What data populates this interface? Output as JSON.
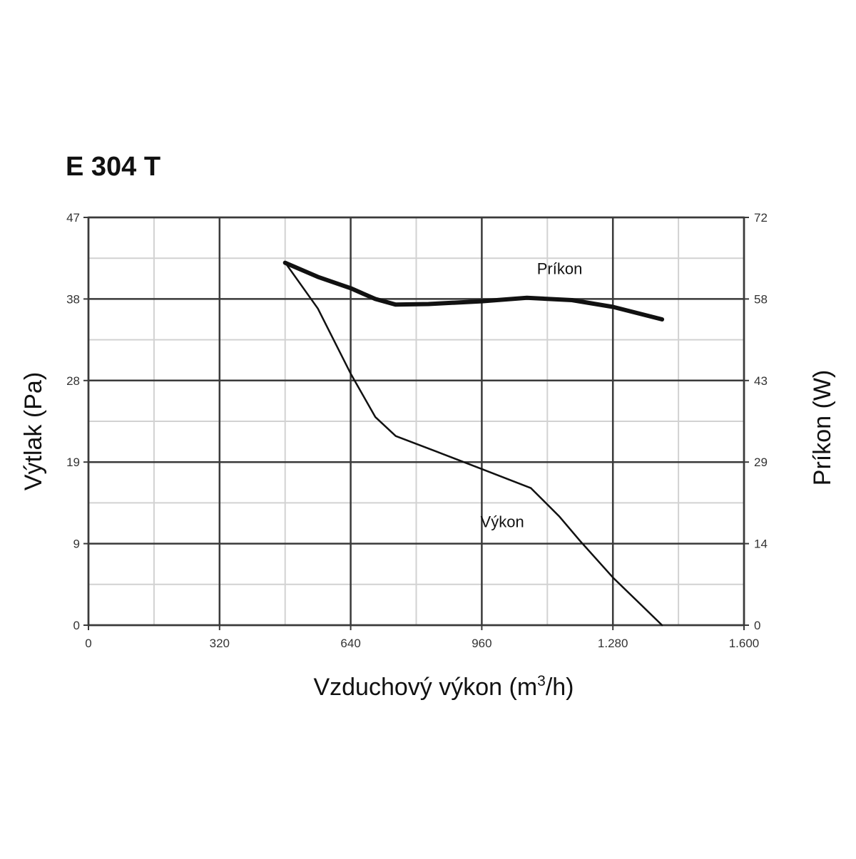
{
  "chart_data": {
    "type": "line",
    "title": "E 304 T",
    "xlabel": {
      "main": "Vzduchový výkon (m",
      "sup": "3",
      "tail": "/h)"
    },
    "ylabel": "Výtlak (Pa)",
    "y2label": "Príkon (W)",
    "xlim": [
      0,
      1600
    ],
    "ylim": [
      0,
      47
    ],
    "y2lim": [
      0,
      72
    ],
    "x_ticks": [
      {
        "value": 0,
        "label": "0"
      },
      {
        "value": 320,
        "label": "320"
      },
      {
        "value": 640,
        "label": "640"
      },
      {
        "value": 960,
        "label": "960"
      },
      {
        "value": 1280,
        "label": "1.280"
      },
      {
        "value": 1600,
        "label": "1.600"
      }
    ],
    "x_minor_ticks": [
      160,
      480,
      800,
      1120,
      1440
    ],
    "y_ticks": [
      {
        "value": 0,
        "label": "0"
      },
      {
        "value": 9.4,
        "label": "9"
      },
      {
        "value": 18.8,
        "label": "19"
      },
      {
        "value": 28.2,
        "label": "28"
      },
      {
        "value": 37.6,
        "label": "38"
      },
      {
        "value": 47,
        "label": "47"
      }
    ],
    "y_minor_ticks": [
      4.7,
      14.1,
      23.5,
      32.9,
      42.3
    ],
    "y2_ticks": [
      {
        "value": 0,
        "label": "0"
      },
      {
        "value": 14.4,
        "label": "14"
      },
      {
        "value": 28.8,
        "label": "29"
      },
      {
        "value": 43.2,
        "label": "43"
      },
      {
        "value": 57.6,
        "label": "58"
      },
      {
        "value": 72,
        "label": "72"
      }
    ],
    "grid": true,
    "series": [
      {
        "name": "Príkon",
        "axis": "y2",
        "color": "#111111",
        "weight": "bold",
        "x": [
          480,
          560,
          640,
          700,
          750,
          830,
          960,
          1070,
          1180,
          1280,
          1400
        ],
        "y": [
          64.0,
          61.5,
          59.5,
          57.6,
          56.6,
          56.7,
          57.2,
          57.8,
          57.4,
          56.2,
          54.0
        ]
      },
      {
        "name": "Výkon",
        "axis": "y",
        "color": "#111111",
        "weight": "thin",
        "x": [
          480,
          560,
          640,
          700,
          750,
          850,
          960,
          1080,
          1150,
          1200,
          1280,
          1400
        ],
        "y": [
          41.8,
          36.5,
          29.0,
          24.0,
          21.8,
          20.0,
          18.0,
          15.8,
          12.5,
          9.7,
          5.5,
          0
        ]
      }
    ],
    "series_labels": [
      {
        "text": "Príkon",
        "x": 1150,
        "y2": 62.0
      },
      {
        "text": "Výkon",
        "x": 1010,
        "y": 11.3
      }
    ]
  }
}
